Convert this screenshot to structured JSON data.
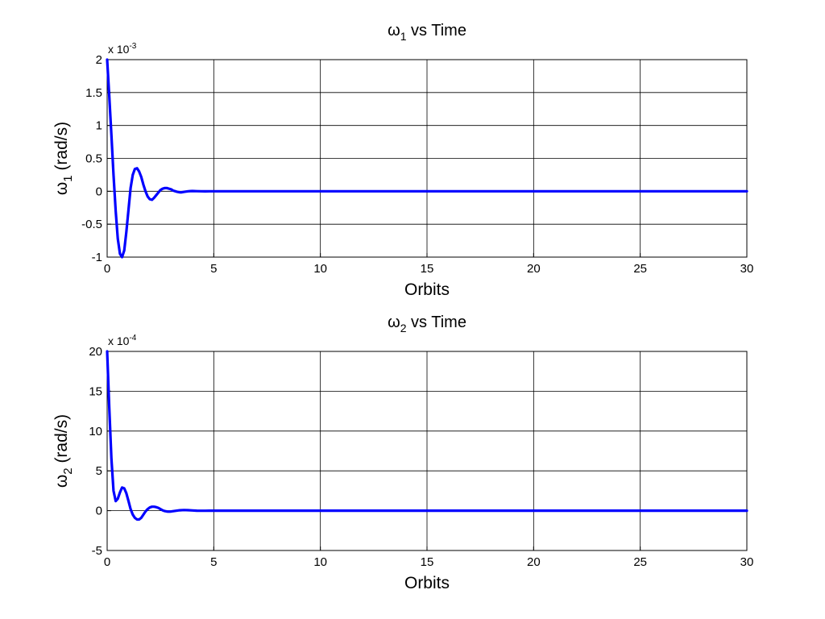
{
  "chart_data": [
    {
      "type": "line",
      "title": {
        "symbol": "ω",
        "sub": "1",
        "rest": " vs Time"
      },
      "xlabel": "Orbits",
      "ylabel": {
        "symbol": "ω",
        "sub": "1",
        "rest": " (rad/s)"
      },
      "exponent": {
        "base": "x 10",
        "power": "-3"
      },
      "xlim": [
        0,
        30
      ],
      "ylim": [
        -1,
        2
      ],
      "xticks": [
        0,
        5,
        10,
        15,
        20,
        25,
        30
      ],
      "xtick_labels": [
        "0",
        "5",
        "10",
        "15",
        "20",
        "25",
        "30"
      ],
      "yticks": [
        -1,
        -0.5,
        0,
        0.5,
        1,
        1.5,
        2
      ],
      "ytick_labels": [
        "-1",
        "-0.5",
        "0",
        "0.5",
        "1",
        "1.5",
        "2"
      ],
      "grid": true,
      "line_color": "#0000ff",
      "series": [
        {
          "x": [
            0,
            0.1,
            0.2,
            0.3,
            0.4,
            0.5,
            0.6,
            0.7,
            0.8,
            0.9,
            1.0,
            1.1,
            1.2,
            1.3,
            1.4,
            1.5,
            1.6,
            1.7,
            1.8,
            1.9,
            2.0,
            2.1,
            2.2,
            2.3,
            2.4,
            2.5,
            2.6,
            2.7,
            2.8,
            2.9,
            3.0,
            3.1,
            3.2,
            3.3,
            3.4,
            3.5,
            3.6,
            3.7,
            3.8,
            3.9,
            4.0,
            4.2,
            4.4,
            4.6,
            4.8,
            5.0,
            6,
            8,
            10,
            15,
            20,
            25,
            30
          ],
          "values": [
            2.0,
            1.45,
            0.85,
            0.25,
            -0.3,
            -0.72,
            -0.95,
            -1.0,
            -0.9,
            -0.62,
            -0.28,
            0.05,
            0.25,
            0.34,
            0.35,
            0.3,
            0.22,
            0.1,
            0.0,
            -0.08,
            -0.12,
            -0.13,
            -0.1,
            -0.06,
            -0.02,
            0.02,
            0.04,
            0.05,
            0.05,
            0.04,
            0.03,
            0.01,
            0.0,
            -0.01,
            -0.015,
            -0.015,
            -0.01,
            -0.005,
            0.0,
            0.003,
            0.004,
            0.002,
            0.0,
            -0.001,
            0.0,
            0.0,
            0.0,
            0.0,
            0.0,
            0.0,
            0.0,
            0.0,
            0.0
          ]
        }
      ]
    },
    {
      "type": "line",
      "title": {
        "symbol": "ω",
        "sub": "2",
        "rest": " vs Time"
      },
      "xlabel": "Orbits",
      "ylabel": {
        "symbol": "ω",
        "sub": "2",
        "rest": " (rad/s)"
      },
      "exponent": {
        "base": "x 10",
        "power": "-4"
      },
      "xlim": [
        0,
        30
      ],
      "ylim": [
        -5,
        20
      ],
      "xticks": [
        0,
        5,
        10,
        15,
        20,
        25,
        30
      ],
      "xtick_labels": [
        "0",
        "5",
        "10",
        "15",
        "20",
        "25",
        "30"
      ],
      "yticks": [
        -5,
        0,
        5,
        10,
        15,
        20
      ],
      "ytick_labels": [
        "-5",
        "0",
        "5",
        "10",
        "15",
        "20"
      ],
      "grid": true,
      "line_color": "#0000ff",
      "series": [
        {
          "x": [
            0,
            0.1,
            0.2,
            0.3,
            0.4,
            0.5,
            0.6,
            0.7,
            0.8,
            0.9,
            1.0,
            1.1,
            1.2,
            1.3,
            1.4,
            1.5,
            1.6,
            1.7,
            1.8,
            1.9,
            2.0,
            2.1,
            2.2,
            2.3,
            2.4,
            2.5,
            2.6,
            2.7,
            2.8,
            2.9,
            3.0,
            3.2,
            3.4,
            3.6,
            3.8,
            4.0,
            4.2,
            4.4,
            4.6,
            4.8,
            5.0,
            6,
            8,
            10,
            15,
            20,
            25,
            30
          ],
          "values": [
            20.0,
            13.0,
            6.5,
            2.5,
            1.2,
            1.5,
            2.3,
            2.9,
            2.8,
            2.2,
            1.2,
            0.2,
            -0.5,
            -0.9,
            -1.1,
            -1.1,
            -0.9,
            -0.5,
            -0.1,
            0.2,
            0.4,
            0.5,
            0.5,
            0.45,
            0.35,
            0.2,
            0.05,
            -0.05,
            -0.1,
            -0.12,
            -0.1,
            -0.02,
            0.05,
            0.08,
            0.06,
            0.03,
            0.0,
            -0.01,
            -0.01,
            0.0,
            0.0,
            0.0,
            0.0,
            0.0,
            0.0,
            0.0,
            0.0,
            0.0
          ]
        }
      ]
    }
  ]
}
